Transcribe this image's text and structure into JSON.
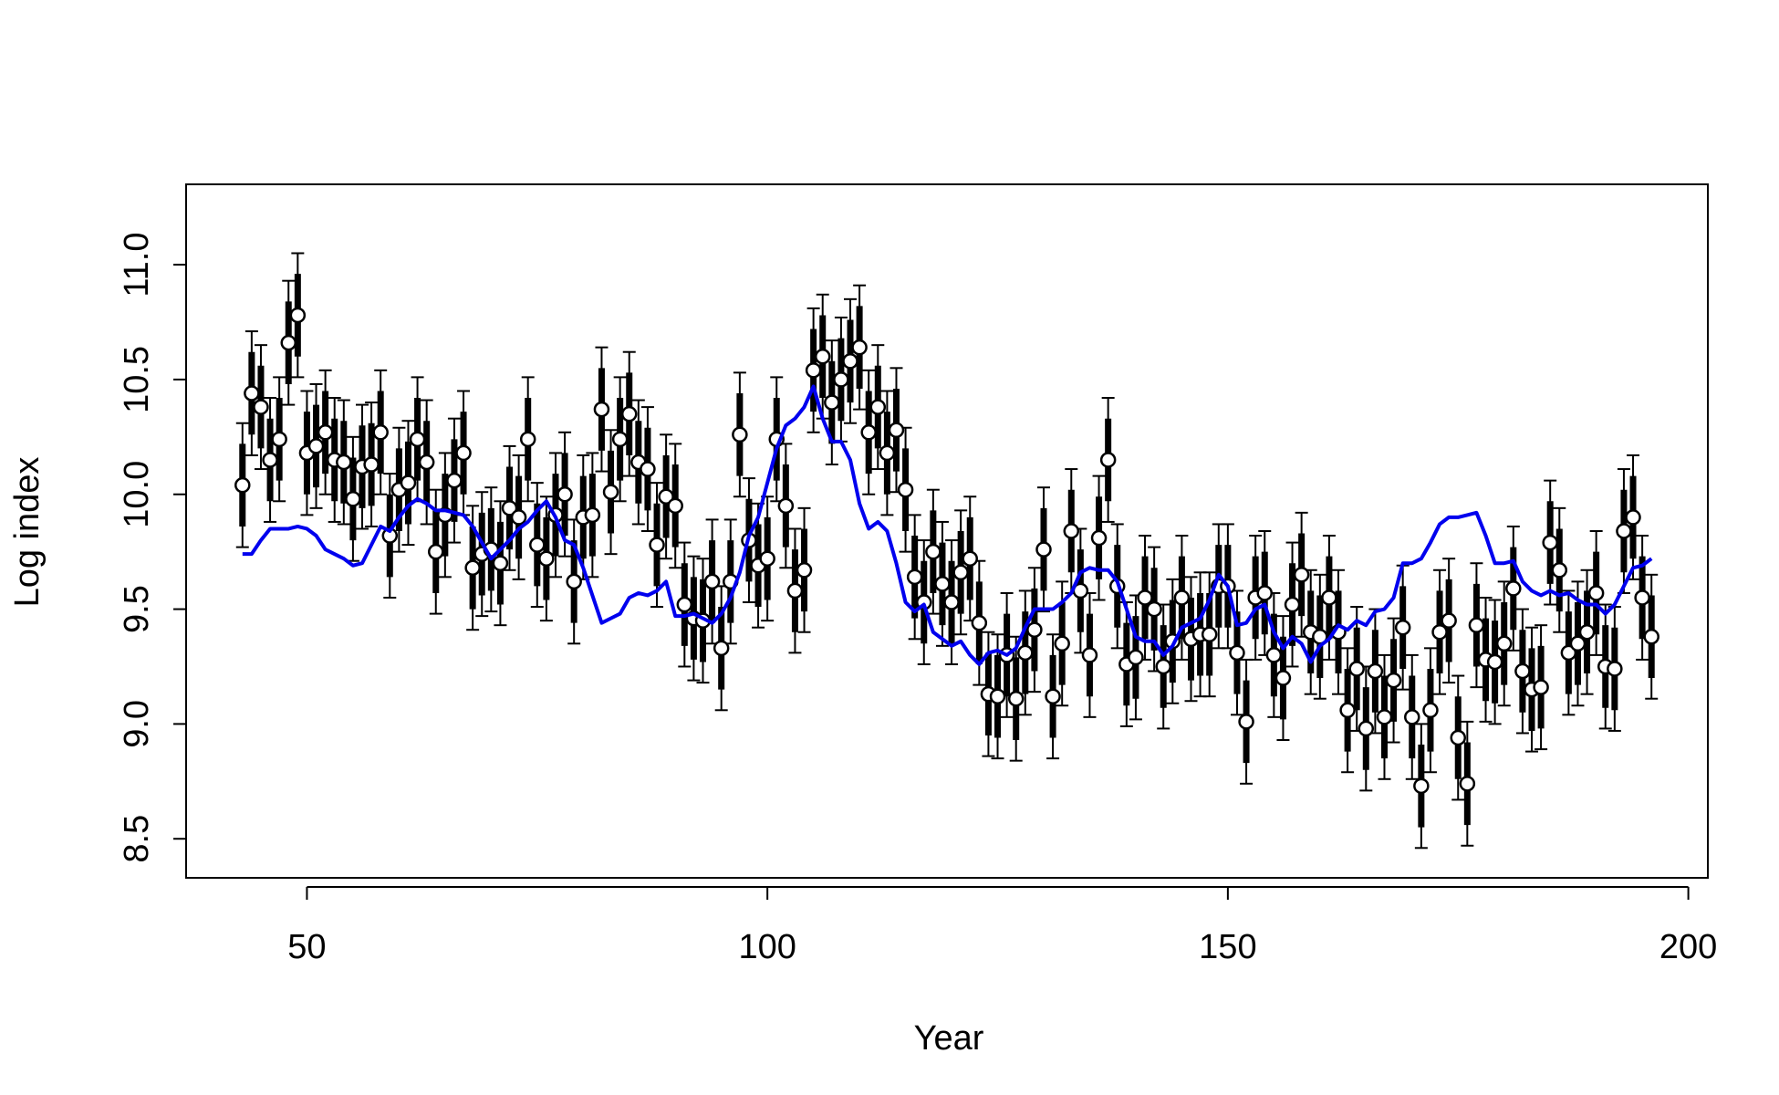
{
  "chart_data": {
    "type": "errorbar-line",
    "x_label": "Year",
    "y_label": "Log index",
    "x": [
      43,
      44,
      45,
      46,
      47,
      48,
      49,
      50,
      51,
      52,
      53,
      54,
      55,
      56,
      57,
      58,
      59,
      60,
      61,
      62,
      63,
      64,
      65,
      66,
      67,
      68,
      69,
      70,
      71,
      72,
      73,
      74,
      75,
      76,
      77,
      78,
      79,
      80,
      81,
      82,
      83,
      84,
      85,
      86,
      87,
      88,
      89,
      90,
      91,
      92,
      93,
      94,
      95,
      96,
      97,
      98,
      99,
      100,
      101,
      102,
      103,
      104,
      105,
      106,
      107,
      108,
      109,
      110,
      111,
      112,
      113,
      114,
      115,
      116,
      117,
      118,
      119,
      120,
      121,
      122,
      123,
      124,
      125,
      126,
      127,
      128,
      129,
      130,
      131,
      132,
      133,
      134,
      135,
      136,
      137,
      138,
      139,
      140,
      141,
      142,
      143,
      144,
      145,
      146,
      147,
      148,
      149,
      150,
      151,
      152,
      153,
      154,
      155,
      156,
      157,
      158,
      159,
      160,
      161,
      162,
      163,
      164,
      165,
      166,
      167,
      168,
      169,
      170,
      171,
      172,
      173,
      174,
      175,
      176,
      177,
      178,
      179,
      180,
      181,
      182,
      183,
      184,
      185,
      186,
      187,
      188,
      189,
      190,
      191,
      192,
      193,
      194,
      195,
      196
    ],
    "series": [
      {
        "type": "errorbar",
        "color": "#000000",
        "fill": "#ffffff",
        "error": 0.27,
        "inner_error": 0.18,
        "values": [
          10.04,
          10.44,
          10.38,
          10.15,
          10.24,
          10.66,
          10.78,
          10.18,
          10.21,
          10.27,
          10.15,
          10.14,
          9.98,
          10.12,
          10.13,
          10.27,
          9.82,
          10.02,
          10.05,
          10.24,
          10.14,
          9.75,
          9.91,
          10.06,
          10.18,
          9.68,
          9.74,
          9.76,
          9.7,
          9.94,
          9.9,
          10.24,
          9.78,
          9.72,
          9.91,
          10.0,
          9.62,
          9.9,
          9.91,
          10.37,
          10.01,
          10.24,
          10.35,
          10.14,
          10.11,
          9.78,
          9.99,
          9.95,
          9.52,
          9.46,
          9.45,
          9.62,
          9.33,
          9.62,
          10.26,
          9.8,
          9.69,
          9.72,
          10.24,
          9.95,
          9.58,
          9.67,
          10.54,
          10.6,
          10.4,
          10.5,
          10.58,
          10.64,
          10.27,
          10.38,
          10.18,
          10.28,
          10.02,
          9.64,
          9.53,
          9.75,
          9.61,
          9.53,
          9.66,
          9.72,
          9.44,
          9.13,
          9.12,
          9.3,
          9.11,
          9.31,
          9.41,
          9.76,
          9.12,
          9.35,
          9.84,
          9.58,
          9.3,
          9.81,
          10.15,
          9.6,
          9.26,
          9.29,
          9.55,
          9.5,
          9.25,
          9.36,
          9.55,
          9.37,
          9.39,
          9.39,
          9.6,
          9.6,
          9.31,
          9.01,
          9.55,
          9.57,
          9.3,
          9.2,
          9.52,
          9.65,
          9.4,
          9.38,
          9.55,
          9.4,
          9.06,
          9.24,
          8.98,
          9.23,
          9.03,
          9.19,
          9.42,
          9.03,
          8.73,
          9.06,
          9.4,
          9.45,
          8.94,
          8.74,
          9.43,
          9.28,
          9.27,
          9.35,
          9.59,
          9.23,
          9.15,
          9.16,
          9.79,
          9.67,
          9.31,
          9.35,
          9.4,
          9.57,
          9.25,
          9.24,
          9.84,
          9.9,
          9.55,
          9.38
        ]
      },
      {
        "type": "line",
        "color": "#0000ee",
        "values": [
          9.74,
          9.74,
          9.8,
          9.85,
          9.85,
          9.85,
          9.86,
          9.85,
          9.82,
          9.76,
          9.74,
          9.72,
          9.69,
          9.7,
          9.78,
          9.86,
          9.84,
          9.9,
          9.95,
          9.98,
          9.96,
          9.93,
          9.93,
          9.92,
          9.91,
          9.86,
          9.79,
          9.72,
          9.76,
          9.8,
          9.85,
          9.88,
          9.93,
          9.97,
          9.9,
          9.8,
          9.78,
          9.68,
          9.56,
          9.44,
          9.46,
          9.48,
          9.55,
          9.57,
          9.56,
          9.58,
          9.62,
          9.47,
          9.47,
          9.48,
          9.46,
          9.44,
          9.48,
          9.55,
          9.66,
          9.82,
          9.9,
          10.05,
          10.2,
          10.3,
          10.33,
          10.38,
          10.47,
          10.33,
          10.23,
          10.23,
          10.15,
          9.96,
          9.85,
          9.88,
          9.84,
          9.7,
          9.53,
          9.49,
          9.52,
          9.4,
          9.37,
          9.34,
          9.36,
          9.3,
          9.26,
          9.31,
          9.32,
          9.3,
          9.33,
          9.42,
          9.5,
          9.5,
          9.5,
          9.53,
          9.57,
          9.66,
          9.68,
          9.67,
          9.67,
          9.62,
          9.5,
          9.38,
          9.36,
          9.36,
          9.3,
          9.34,
          9.42,
          9.44,
          9.46,
          9.54,
          9.65,
          9.6,
          9.43,
          9.44,
          9.5,
          9.52,
          9.4,
          9.33,
          9.38,
          9.35,
          9.27,
          9.34,
          9.37,
          9.43,
          9.41,
          9.45,
          9.43,
          9.49,
          9.5,
          9.55,
          9.7,
          9.7,
          9.72,
          9.79,
          9.87,
          9.9,
          9.9,
          9.91,
          9.92,
          9.82,
          9.7,
          9.7,
          9.71,
          9.62,
          9.58,
          9.56,
          9.58,
          9.56,
          9.57,
          9.54,
          9.52,
          9.52,
          9.48,
          9.52,
          9.6,
          9.68,
          9.69,
          9.72
        ]
      }
    ],
    "xlim": [
      36.88,
      202.12
    ],
    "xticks": [
      50,
      100,
      150,
      200
    ],
    "ylim": [
      8.33,
      11.35
    ],
    "yticks": [
      8.5,
      {
        "value": 9.0,
        "label": "9.0"
      },
      9.5,
      {
        "value": 10.0,
        "label": "10.0"
      },
      10.5,
      {
        "value": 11.0,
        "label": "11.0"
      }
    ]
  }
}
